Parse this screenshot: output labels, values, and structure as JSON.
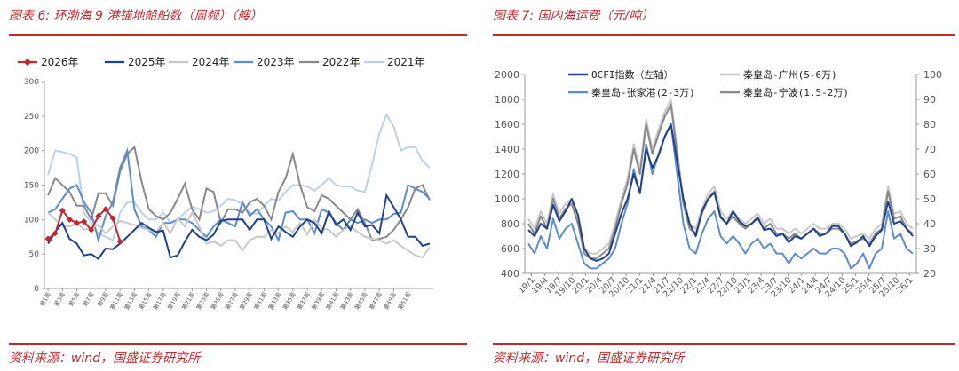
{
  "left": {
    "figure_title": "图表 6:  环渤海 9 港锚地船舶数（周频）（艘）",
    "source": "资料来源：wind，国盛证券研究所"
  },
  "right": {
    "figure_title": "图表 7:  国内海运费（元/吨）",
    "source": "资料来源：wind，国盛证券研究所"
  },
  "colors": {
    "accent": "#c0282e",
    "s2026": "#c0282e",
    "s2025": "#1f3f8f",
    "s2024": "#c8c8c8",
    "s2023": "#5b8bd0",
    "s2022": "#888888",
    "s2021": "#bcd0ec"
  },
  "chart_data": [
    {
      "type": "line",
      "title": "",
      "x_tick_labels": [
        "第1周",
        "第3周",
        "第5周",
        "第7周",
        "第9周",
        "第11周",
        "第13周",
        "第15周",
        "第17周",
        "第19周",
        "第21周",
        "第23周",
        "第25周",
        "第27周",
        "第29周",
        "第31周",
        "第33周",
        "第35周",
        "第37周",
        "第39周",
        "第41周",
        "第43周",
        "第45周",
        "第47周",
        "第49周",
        "第51周"
      ],
      "ylim": [
        0,
        300
      ],
      "y_ticks": [
        "0",
        "50",
        "100",
        "150",
        "200",
        "250",
        "300"
      ],
      "legend_position": "top",
      "series": [
        {
          "name": "2026年",
          "color_key": "s2026",
          "markers": true,
          "values": [
            72,
            80,
            113,
            100,
            95,
            97,
            85,
            105,
            115,
            102,
            68
          ]
        },
        {
          "name": "2025年",
          "color_key": "s2025",
          "values": [
            65,
            82,
            95,
            72,
            65,
            48,
            50,
            43,
            58,
            57,
            65,
            75,
            85,
            95,
            88,
            82,
            84,
            45,
            48,
            68,
            85,
            75,
            70,
            78,
            98,
            100,
            100,
            100,
            85,
            100,
            100,
            72,
            90,
            82,
            75,
            90,
            100,
            95,
            80,
            112,
            92,
            100,
            85,
            110,
            90,
            92,
            80,
            135,
            118,
            100,
            75,
            75,
            62,
            65
          ]
        },
        {
          "name": "2024年",
          "color_key": "s2024",
          "values": [
            110,
            100,
            90,
            90,
            95,
            85,
            88,
            92,
            80,
            90,
            98,
            95,
            92,
            88,
            85,
            82,
            95,
            80,
            102,
            90,
            110,
            90,
            65,
            68,
            62,
            70,
            70,
            55,
            70,
            75,
            75,
            85,
            80,
            90,
            82,
            95,
            78,
            100,
            88,
            85,
            75,
            85,
            90,
            82,
            75,
            72,
            70,
            65,
            70,
            62,
            55,
            48,
            45,
            60
          ]
        },
        {
          "name": "2023年",
          "color_key": "s2023",
          "values": [
            110,
            115,
            130,
            145,
            150,
            125,
            110,
            70,
            105,
            125,
            175,
            200,
            115,
            90,
            85,
            75,
            95,
            95,
            100,
            100,
            95,
            85,
            75,
            90,
            100,
            95,
            90,
            125,
            105,
            115,
            100,
            90,
            70,
            110,
            112,
            100,
            100,
            80,
            115,
            110,
            95,
            85,
            100,
            95,
            100,
            95,
            100,
            100,
            108,
            110,
            150,
            145,
            140,
            130
          ]
        },
        {
          "name": "2022年",
          "color_key": "s2022",
          "values": [
            135,
            160,
            150,
            140,
            120,
            120,
            100,
            138,
            138,
            120,
            170,
            195,
            205,
            155,
            115,
            105,
            100,
            110,
            130,
            152,
            115,
            100,
            145,
            140,
            95,
            115,
            115,
            110,
            125,
            130,
            120,
            100,
            140,
            160,
            195,
            150,
            118,
            112,
            135,
            130,
            120,
            110,
            100,
            115,
            95,
            70,
            72,
            75,
            85,
            100,
            118,
            145,
            150,
            128
          ]
        },
        {
          "name": "2021年",
          "color_key": "s2021",
          "values": [
            165,
            200,
            198,
            195,
            190,
            110,
            95,
            80,
            75,
            70,
            110,
            125,
            125,
            110,
            100,
            100,
            110,
            95,
            100,
            110,
            118,
            115,
            110,
            112,
            120,
            130,
            128,
            122,
            110,
            108,
            120,
            130,
            128,
            140,
            150,
            150,
            148,
            142,
            150,
            160,
            150,
            148,
            148,
            142,
            140,
            180,
            225,
            252,
            235,
            200,
            205,
            205,
            185,
            175
          ]
        }
      ]
    },
    {
      "type": "line",
      "title": "",
      "x_tick_labels": [
        "19/1",
        "19/4",
        "19/7",
        "19/10",
        "20/1",
        "20/4",
        "20/7",
        "20/10",
        "21/1",
        "21/4",
        "21/7",
        "21/10",
        "22/1",
        "22/4",
        "22/7",
        "22/10",
        "23/1",
        "23/4",
        "23/7",
        "23/10",
        "24/1",
        "24/4",
        "24/7",
        "24/10",
        "25/1",
        "25/4",
        "25/7",
        "25/10",
        "26/1"
      ],
      "ylim_left": [
        400,
        2000
      ],
      "ylim_right": [
        20,
        100
      ],
      "y_ticks_left": [
        "400",
        "600",
        "800",
        "1000",
        "1200",
        "1400",
        "1600",
        "1800",
        "2000"
      ],
      "y_ticks_right": [
        "20",
        "30",
        "40",
        "50",
        "60",
        "70",
        "80",
        "90",
        "100"
      ],
      "legend_position": "top",
      "series": [
        {
          "name": "OCFI指数（左轴）",
          "axis": "left",
          "color_key": "s2025",
          "values": [
            750,
            700,
            800,
            760,
            950,
            820,
            900,
            1000,
            870,
            600,
            520,
            500,
            520,
            560,
            720,
            880,
            1000,
            1200,
            1050,
            1400,
            1250,
            1350,
            1500,
            1600,
            1300,
            1000,
            800,
            700,
            900,
            1000,
            1050,
            850,
            800,
            900,
            820,
            780,
            800,
            850,
            750,
            760,
            700,
            720,
            650,
            700,
            680,
            720,
            760,
            700,
            720,
            780,
            780,
            720,
            620,
            650,
            700,
            620,
            700,
            750,
            980,
            800,
            820,
            760,
            700
          ]
        },
        {
          "name": "秦皇岛-广州(5-6万)",
          "axis": "right",
          "color_key": "s2024",
          "values": [
            42,
            38,
            45,
            40,
            52,
            44,
            48,
            50,
            42,
            30,
            28,
            28,
            30,
            32,
            40,
            50,
            58,
            72,
            62,
            82,
            70,
            78,
            85,
            90,
            70,
            50,
            40,
            38,
            46,
            52,
            55,
            45,
            42,
            45,
            42,
            40,
            42,
            44,
            40,
            42,
            38,
            38,
            36,
            38,
            36,
            38,
            40,
            38,
            38,
            40,
            40,
            38,
            34,
            35,
            36,
            34,
            38,
            40,
            55,
            44,
            45,
            40,
            38
          ]
        },
        {
          "name": "秦皇岛-张家港(2-3万)",
          "axis": "right",
          "color_key": "s2023",
          "values": [
            32,
            28,
            35,
            30,
            42,
            34,
            38,
            40,
            32,
            24,
            22,
            22,
            24,
            26,
            30,
            40,
            48,
            62,
            52,
            72,
            60,
            68,
            75,
            80,
            60,
            40,
            30,
            28,
            36,
            42,
            45,
            35,
            32,
            35,
            32,
            28,
            32,
            34,
            30,
            32,
            28,
            28,
            24,
            28,
            26,
            28,
            30,
            28,
            28,
            30,
            30,
            28,
            22,
            24,
            28,
            22,
            28,
            30,
            45,
            34,
            36,
            30,
            28
          ]
        },
        {
          "name": "秦皇岛-宁波(1.5-2万)",
          "axis": "right",
          "color_key": "s2022",
          "values": [
            40,
            36,
            43,
            38,
            50,
            42,
            46,
            48,
            40,
            28,
            26,
            26,
            28,
            30,
            38,
            48,
            56,
            70,
            60,
            80,
            68,
            76,
            83,
            88,
            68,
            48,
            38,
            36,
            44,
            50,
            53,
            43,
            40,
            43,
            40,
            38,
            40,
            42,
            38,
            40,
            36,
            36,
            34,
            36,
            34,
            36,
            38,
            36,
            36,
            38,
            38,
            36,
            32,
            33,
            34,
            32,
            36,
            38,
            53,
            42,
            43,
            38,
            36
          ]
        }
      ]
    }
  ]
}
